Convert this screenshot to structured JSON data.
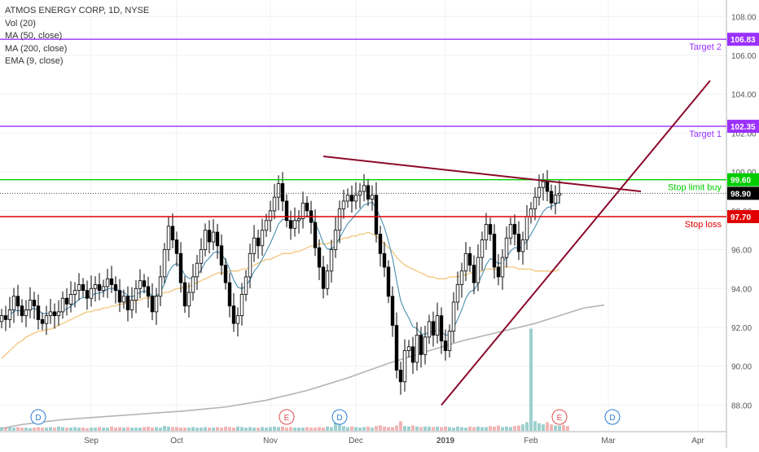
{
  "chart_data": {
    "type": "candlestick",
    "title": "ATMOS ENERGY CORP, 1D, NYSE",
    "legend_items": [
      "Vol (20)",
      "MA (50, close)",
      "MA (200, close)",
      "EMA (9, close)"
    ],
    "ylim": [
      86.8,
      108.6
    ],
    "y_ticks": [
      "88.00",
      "90.00",
      "92.00",
      "94.00",
      "96.00",
      "98.00",
      "100.00",
      "102.00",
      "104.00",
      "106.00",
      "108.00"
    ],
    "x_ticks": [
      {
        "label": "Sep",
        "x": 22
      },
      {
        "label": "Oct",
        "x": 43
      },
      {
        "label": "Nov",
        "x": 66
      },
      {
        "label": "Dec",
        "x": 87
      },
      {
        "label": "2019",
        "x": 109
      },
      {
        "label": "Feb",
        "x": 130
      },
      {
        "label": "Mar",
        "x": 149
      },
      {
        "label": "Apr",
        "x": 171
      }
    ],
    "closes": [
      92.6,
      92.4,
      92.9,
      93.6,
      93.1,
      92.6,
      92.9,
      93.4,
      93.1,
      92.4,
      92.2,
      92.6,
      92.8,
      92.6,
      92.8,
      93.5,
      93.2,
      93.7,
      93.9,
      94.2,
      93.9,
      93.5,
      94.0,
      94.2,
      93.9,
      94.1,
      94.5,
      94.2,
      93.9,
      93.3,
      93.6,
      92.9,
      93.4,
      94.0,
      94.4,
      94.1,
      93.6,
      92.8,
      93.6,
      94.6,
      96.0,
      97.2,
      96.5,
      95.8,
      94.3,
      93.1,
      93.8,
      94.6,
      95.3,
      96.0,
      97.0,
      96.4,
      96.9,
      96.2,
      95.2,
      94.3,
      93.1,
      92.2,
      92.6,
      93.7,
      94.6,
      95.8,
      96.6,
      96.2,
      97.0,
      97.5,
      98.0,
      98.7,
      99.4,
      98.5,
      97.5,
      97.1,
      97.5,
      97.6,
      98.4,
      98.0,
      97.4,
      96.1,
      95.1,
      94.0,
      94.9,
      96.0,
      97.0,
      98.1,
      98.5,
      98.8,
      98.5,
      98.8,
      99.0,
      99.3,
      98.6,
      98.8,
      96.8,
      95.8,
      95.1,
      93.6,
      92.1,
      89.8,
      89.2,
      90.8,
      91.0,
      90.2,
      91.6,
      90.6,
      91.5,
      92.3,
      91.6,
      92.6,
      91.3,
      90.8,
      91.8,
      93.3,
      94.2,
      94.9,
      95.8,
      95.2,
      94.3,
      95.6,
      96.5,
      97.3,
      96.8,
      95.1,
      94.6,
      95.6,
      96.6,
      97.3,
      96.8,
      95.9,
      96.5,
      97.7,
      98.1,
      98.7,
      99.2,
      99.5,
      99.0,
      98.4,
      98.8,
      98.9
    ],
    "ma50": [
      90.4,
      90.6,
      90.8,
      91.0,
      91.2,
      91.3,
      91.5,
      91.6,
      91.7,
      91.8,
      91.8,
      91.9,
      91.9,
      92.0,
      92.1,
      92.2,
      92.3,
      92.4,
      92.5,
      92.6,
      92.7,
      92.8,
      92.8,
      92.9,
      92.9,
      93.0,
      93.0,
      93.1,
      93.1,
      93.2,
      93.2,
      93.3,
      93.3,
      93.4,
      93.4,
      93.5,
      93.5,
      93.6,
      93.6,
      93.7,
      93.8,
      93.8,
      93.9,
      94.0,
      94.0,
      94.1,
      94.1,
      94.2,
      94.3,
      94.4,
      94.5,
      94.6,
      94.7,
      94.8,
      94.8,
      94.8,
      94.9,
      94.9,
      94.9,
      95.0,
      95.0,
      95.1,
      95.2,
      95.3,
      95.4,
      95.5,
      95.5,
      95.6,
      95.7,
      95.8,
      95.8,
      95.8,
      95.9,
      95.9,
      96.0,
      96.1,
      96.2,
      96.2,
      96.3,
      96.3,
      96.3,
      96.4,
      96.4,
      96.5,
      96.6,
      96.6,
      96.7,
      96.7,
      96.8,
      96.8,
      96.9,
      96.8,
      96.7,
      96.5,
      96.3,
      96.1,
      95.9,
      95.6,
      95.4,
      95.2,
      95.1,
      95.0,
      94.9,
      94.8,
      94.7,
      94.6,
      94.6,
      94.5,
      94.5,
      94.5,
      94.6,
      94.6,
      94.6,
      94.7,
      94.7,
      94.8,
      94.8,
      94.9,
      94.9,
      95.0,
      95.0,
      95.0,
      95.0,
      95.1,
      95.1,
      95.1,
      95.1,
      95.0,
      95.0,
      95.0,
      95.0,
      94.9,
      94.9,
      94.9,
      94.9,
      94.9,
      94.9,
      95.0
    ],
    "ma200_points": [
      [
        0,
        86.8
      ],
      [
        5,
        87.0
      ],
      [
        15,
        87.25
      ],
      [
        25,
        87.4
      ],
      [
        35,
        87.55
      ],
      [
        45,
        87.7
      ],
      [
        55,
        87.9
      ],
      [
        65,
        88.25
      ],
      [
        75,
        88.75
      ],
      [
        85,
        89.4
      ],
      [
        95,
        90.15
      ],
      [
        105,
        90.8
      ],
      [
        113,
        91.3
      ],
      [
        121,
        91.7
      ],
      [
        131,
        92.2
      ],
      [
        137,
        92.6
      ],
      [
        143,
        93.0
      ],
      [
        148,
        93.15
      ]
    ],
    "volumes": [
      0.35,
      0.3,
      0.4,
      0.3,
      0.35,
      0.3,
      0.3,
      0.25,
      0.3,
      0.35,
      0.3,
      0.3,
      0.35,
      0.3,
      0.4,
      0.35,
      0.3,
      0.3,
      0.35,
      0.3,
      0.3,
      0.25,
      0.3,
      0.3,
      0.35,
      0.3,
      0.3,
      0.4,
      0.3,
      0.35,
      0.3,
      0.35,
      0.3,
      0.3,
      0.3,
      0.35,
      0.4,
      0.3,
      0.35,
      0.3,
      0.45,
      0.4,
      0.35,
      0.35,
      0.3,
      0.3,
      0.3,
      0.35,
      0.3,
      0.3,
      0.35,
      0.3,
      0.3,
      0.35,
      0.3,
      0.4,
      0.35,
      0.3,
      0.4,
      0.35,
      0.3,
      0.35,
      0.3,
      0.3,
      0.35,
      0.3,
      0.35,
      0.4,
      0.35,
      0.4,
      0.3,
      0.35,
      0.3,
      0.3,
      0.3,
      0.35,
      0.3,
      0.3,
      0.35,
      0.3,
      0.4,
      0.35,
      1.9,
      1.0,
      0.45,
      0.35,
      0.4,
      0.35,
      0.3,
      0.35,
      0.4,
      0.3,
      0.45,
      0.5,
      0.4,
      0.35,
      0.35,
      0.5,
      0.9,
      0.45,
      0.4,
      0.5,
      0.4,
      0.35,
      0.4,
      0.4,
      0.35,
      0.4,
      0.35,
      0.4,
      0.35,
      0.3,
      0.4,
      0.35,
      0.3,
      0.4,
      0.35,
      0.4,
      0.35,
      0.35,
      0.45,
      0.4,
      0.5,
      0.35,
      0.4,
      0.35,
      0.45,
      0.5,
      0.6,
      0.8,
      9.5,
      0.9,
      0.7,
      0.6,
      0.8,
      0.6,
      0.5,
      0.5,
      0.55,
      0.45
    ],
    "volume_colors": {
      "up": "#8cc8c6",
      "down": "#f0a8a8"
    },
    "horizontal_levels": [
      {
        "value": 106.83,
        "label": "Target 2",
        "price_label": "106.83",
        "color": "#9b30ff"
      },
      {
        "value": 102.35,
        "label": "Target 1",
        "price_label": "102.35",
        "color": "#9b30ff"
      },
      {
        "value": 99.6,
        "label": "Stop limit buy",
        "price_label": "99.60",
        "color": "#00cc00"
      },
      {
        "value": 97.7,
        "label": "Stop loss",
        "price_label": "97.70",
        "color": "#e00000"
      }
    ],
    "last_price": {
      "value": 98.9,
      "label": "98.90"
    },
    "trendlines": [
      {
        "name": "descending",
        "from": [
          79,
          100.8
        ],
        "to": [
          157,
          99.0
        ],
        "color": "#8b0a2a"
      },
      {
        "name": "ascending",
        "from": [
          108,
          88.0
        ],
        "to": [
          174,
          104.7
        ],
        "color": "#8b0a2a"
      }
    ],
    "event_markers": [
      {
        "type": "D",
        "x": 9,
        "color": "#2a7fd4"
      },
      {
        "type": "E",
        "x": 70,
        "color": "#e04b4b"
      },
      {
        "type": "D",
        "x": 83,
        "color": "#2a7fd4"
      },
      {
        "type": "E",
        "x": 137,
        "color": "#e04b4b"
      },
      {
        "type": "D",
        "x": 150,
        "color": "#2a7fd4"
      }
    ],
    "colors": {
      "up": "#000000",
      "down": "#000000",
      "body_up": "#ffffff",
      "body_down": "#000000",
      "ema9": "#4a8fb0",
      "ma50": "#f3c57a",
      "ma200": "#b4b4b4"
    }
  }
}
